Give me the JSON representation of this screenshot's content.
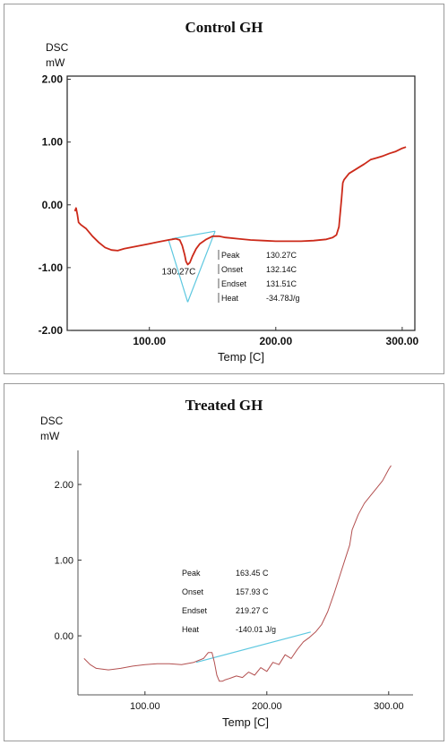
{
  "chart_data": [
    {
      "type": "line",
      "title": "Control GH",
      "ylabel": [
        "DSC",
        "mW"
      ],
      "xlabel": "Temp  [C]",
      "xlim": [
        35,
        310
      ],
      "ylim": [
        -2.0,
        2.05
      ],
      "xticks": [
        100,
        200,
        300
      ],
      "xtick_labels": [
        "100.00",
        "200.00",
        "300.00"
      ],
      "yticks": [
        2.0,
        1.0,
        0.0,
        -1.0,
        -2.0
      ],
      "ytick_labels": [
        "2.00",
        "1.00",
        "0.00",
        "-1.00",
        "-2.00"
      ],
      "line_color": "#cc2a1a",
      "series": [
        {
          "x": [
            41,
            42,
            43,
            44,
            46,
            50,
            55,
            60,
            65,
            70,
            75,
            80,
            85,
            90,
            95,
            100,
            105,
            110,
            115,
            118,
            121,
            124,
            126,
            128,
            129,
            130.3,
            132,
            134,
            137,
            140,
            145,
            150,
            155,
            160,
            170,
            180,
            190,
            200,
            210,
            220,
            230,
            240,
            245,
            248,
            250,
            252,
            253,
            254,
            256,
            258,
            262,
            266,
            270,
            275,
            280,
            285,
            290,
            295,
            300,
            303
          ],
          "y": [
            -0.1,
            -0.05,
            -0.15,
            -0.28,
            -0.32,
            -0.38,
            -0.5,
            -0.6,
            -0.68,
            -0.72,
            -0.73,
            -0.7,
            -0.68,
            -0.66,
            -0.64,
            -0.62,
            -0.6,
            -0.58,
            -0.56,
            -0.55,
            -0.54,
            -0.56,
            -0.65,
            -0.8,
            -0.9,
            -0.95,
            -0.92,
            -0.82,
            -0.7,
            -0.62,
            -0.55,
            -0.5,
            -0.5,
            -0.52,
            -0.54,
            -0.56,
            -0.57,
            -0.58,
            -0.58,
            -0.58,
            -0.57,
            -0.55,
            -0.52,
            -0.48,
            -0.35,
            0.1,
            0.35,
            0.4,
            0.45,
            0.5,
            0.55,
            0.6,
            0.65,
            0.72,
            0.75,
            0.78,
            0.82,
            0.85,
            0.9,
            0.92
          ]
        }
      ],
      "tangent_lines": [
        {
          "x": [
            115,
            130.3
          ],
          "y": [
            -0.55,
            -1.55
          ]
        },
        {
          "x": [
            130.3,
            152
          ],
          "y": [
            -1.55,
            -0.42
          ]
        },
        {
          "x": [
            118,
            152
          ],
          "y": [
            -0.54,
            -0.42
          ]
        }
      ],
      "peak_label": "130.27C",
      "peak_label_pos": [
        130.27,
        -1.05
      ],
      "annotation": [
        {
          "label": "Peak",
          "value": "130.27C"
        },
        {
          "label": "Onset",
          "value": "132.14C"
        },
        {
          "label": "Endset",
          "value": "131.51C"
        },
        {
          "label": "Heat",
          "value": "-34.78J/g"
        }
      ]
    },
    {
      "type": "line",
      "title": "Treated GH",
      "ylabel": [
        "DSC",
        "mW"
      ],
      "xlabel": "Temp  [C]",
      "xlim": [
        45,
        320
      ],
      "ylim": [
        -0.78,
        2.45
      ],
      "xticks": [
        100,
        200,
        300
      ],
      "xtick_labels": [
        "100.00",
        "200.00",
        "300.00"
      ],
      "yticks": [
        2.0,
        1.0,
        0.0
      ],
      "ytick_labels": [
        "2.00",
        "1.00",
        "0.00"
      ],
      "line_color": "#b35050",
      "series": [
        {
          "x": [
            50,
            55,
            60,
            70,
            80,
            90,
            100,
            110,
            120,
            130,
            140,
            148,
            152,
            155,
            157,
            159,
            161,
            163.45,
            166,
            170,
            175,
            180,
            185,
            190,
            195,
            200,
            205,
            210,
            215,
            220,
            225,
            230,
            235,
            240,
            245,
            250,
            255,
            260,
            265,
            268,
            270,
            275,
            280,
            285,
            290,
            295,
            300,
            302
          ],
          "y": [
            -0.3,
            -0.38,
            -0.43,
            -0.45,
            -0.43,
            -0.4,
            -0.38,
            -0.37,
            -0.37,
            -0.38,
            -0.35,
            -0.3,
            -0.22,
            -0.22,
            -0.35,
            -0.52,
            -0.6,
            -0.6,
            -0.58,
            -0.56,
            -0.53,
            -0.55,
            -0.48,
            -0.52,
            -0.42,
            -0.47,
            -0.35,
            -0.38,
            -0.25,
            -0.3,
            -0.18,
            -0.08,
            -0.02,
            0.05,
            0.15,
            0.32,
            0.55,
            0.8,
            1.05,
            1.2,
            1.4,
            1.6,
            1.75,
            1.85,
            1.95,
            2.05,
            2.2,
            2.25
          ]
        }
      ],
      "tangent_lines": [
        {
          "x": [
            142,
            236
          ],
          "y": [
            -0.35,
            0.05
          ]
        }
      ],
      "annotation": [
        {
          "label": "Peak",
          "value": "163.45 C"
        },
        {
          "label": "Onset",
          "value": "157.93 C"
        },
        {
          "label": "Endset",
          "value": "219.27 C"
        },
        {
          "label": "Heat",
          "value": "-140.01 J/g"
        }
      ]
    }
  ]
}
